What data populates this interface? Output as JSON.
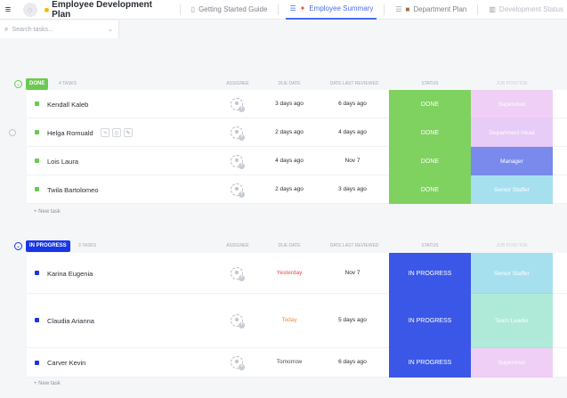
{
  "topbar": {
    "title": "Employee Development Plan",
    "tabs": [
      {
        "label": "Getting Started Guide"
      },
      {
        "label": "Employee Summary"
      },
      {
        "label": "Department Plan"
      },
      {
        "label": "Development Status"
      }
    ]
  },
  "search": {
    "placeholder": "Search tasks..."
  },
  "columns": {
    "assignee": "ASSIGNEE",
    "due_date": "DUE DATE",
    "last_reviewed": "DATE LAST REVIEWED",
    "status": "STATUS",
    "job_position": "JOB POSITION"
  },
  "groups": {
    "done": {
      "label": "DONE",
      "count": "4 TASKS",
      "color": "#6bc950",
      "new_task": "+ New task",
      "rows": [
        {
          "name": "Kendall Kaleb",
          "due": "3 days ago",
          "reviewed": "6 days ago",
          "status": "DONE",
          "position": "Supervisor",
          "position_color": "#e5a8f0"
        },
        {
          "name": "Helga Romuald",
          "due": "2 days ago",
          "reviewed": "4 days ago",
          "status": "DONE",
          "position": "Department Head",
          "position_color": "#d4a3f2"
        },
        {
          "name": "Lois Laura",
          "due": "4 days ago",
          "reviewed": "Nov 7",
          "status": "DONE",
          "position": "Manager",
          "position_color": "#4e63e6"
        },
        {
          "name": "Twila Bartolomeo",
          "due": "2 days ago",
          "reviewed": "3 days ago",
          "status": "DONE",
          "position": "Senior Staffer",
          "position_color": "#5ec8e3"
        }
      ]
    },
    "in_progress": {
      "label": "IN PROGRESS",
      "count": "3 TASKS",
      "color": "#1736e8",
      "new_task": "+ New task",
      "rows": [
        {
          "name": "Karina Eugenia",
          "due": "Yesterday",
          "due_color": "#e44d42",
          "reviewed": "Nov 7",
          "status": "IN PROGRESS",
          "position": "Senior Staffer",
          "position_color": "#5ec8e3"
        },
        {
          "name": "Claudia Arianna",
          "due": "Today",
          "due_color": "#f0873a",
          "reviewed": "5 days ago",
          "status": "IN PROGRESS",
          "position": "Team Leader",
          "position_color": "#6fd9b9"
        },
        {
          "name": "Carver Kevin",
          "due": "Tomorrow",
          "due_color": "#444a54",
          "reviewed": "6 days ago",
          "status": "IN PROGRESS",
          "position": "Supervisor",
          "position_color": "#e5a8f0"
        }
      ]
    }
  }
}
